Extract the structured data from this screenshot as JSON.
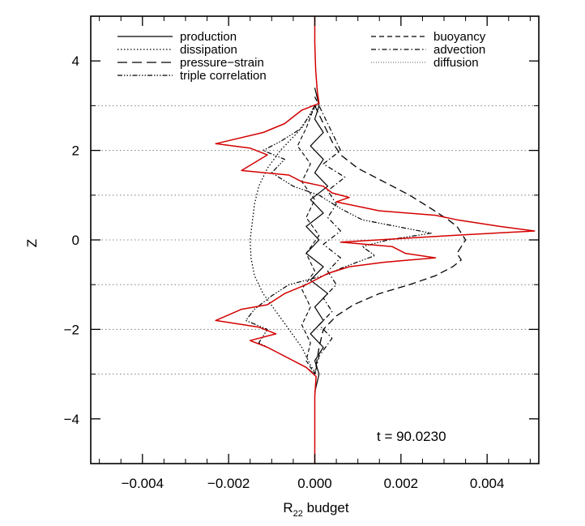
{
  "chart_data": {
    "type": "line",
    "xlabel": "R",
    "xlabel_subscript": "22",
    "xlabel_suffix": " budget",
    "ylabel": "Z",
    "xlim": [
      -0.0052,
      0.0052
    ],
    "ylim": [
      -5,
      5
    ],
    "xticks": [
      -0.004,
      -0.002,
      0.0,
      0.002,
      0.004
    ],
    "xtick_labels": [
      "−0.004",
      "−0.002",
      "0.000",
      "0.002",
      "0.004"
    ],
    "yticks": [
      -4,
      -2,
      0,
      2,
      4
    ],
    "ytick_labels": [
      "−4",
      "−2",
      "0",
      "2",
      "4"
    ],
    "reference_lines_z": [
      -3,
      -1,
      1,
      3,
      2,
      0,
      -2
    ],
    "annotation": "t  =  90.0230",
    "legend": {
      "left": [
        {
          "label": "production",
          "style": "solid"
        },
        {
          "label": "dissipation",
          "style": "dotted"
        },
        {
          "label": "pressure−strain",
          "style": "longdash"
        },
        {
          "label": "triple correlation",
          "style": "dashdotdotdot"
        }
      ],
      "right": [
        {
          "label": "buoyancy",
          "style": "dashed"
        },
        {
          "label": "advection",
          "style": "dashdot"
        },
        {
          "label": "diffusion",
          "style": "finedotted"
        }
      ]
    },
    "series": [
      {
        "name": "dissipation",
        "color": "#000000",
        "dash": "1.5,2.5",
        "width": 1.3,
        "points": [
          [
            3e-05,
            3.0
          ],
          [
            -0.0001,
            2.8
          ],
          [
            -0.0004,
            2.4
          ],
          [
            -0.0008,
            2.0
          ],
          [
            -0.0011,
            1.6
          ],
          [
            -0.0013,
            1.2
          ],
          [
            -0.0014,
            0.8
          ],
          [
            -0.00145,
            0.4
          ],
          [
            -0.0015,
            0.0
          ],
          [
            -0.00148,
            -0.4
          ],
          [
            -0.0014,
            -0.8
          ],
          [
            -0.0012,
            -1.2
          ],
          [
            -0.0009,
            -1.6
          ],
          [
            -0.0006,
            -2.0
          ],
          [
            -0.0003,
            -2.4
          ],
          [
            -0.0001,
            -2.8
          ],
          [
            3e-05,
            -3.0
          ]
        ]
      },
      {
        "name": "pressure−strain",
        "color": "#000000",
        "dash": "9,5",
        "width": 1.3,
        "points": [
          [
            0.0,
            3.0
          ],
          [
            0.0002,
            2.6
          ],
          [
            0.0004,
            2.2
          ],
          [
            0.0006,
            1.9
          ],
          [
            0.001,
            1.6
          ],
          [
            0.0016,
            1.3
          ],
          [
            0.0022,
            1.0
          ],
          [
            0.0027,
            0.7
          ],
          [
            0.0031,
            0.45
          ],
          [
            0.0033,
            0.3
          ],
          [
            0.0034,
            0.15
          ],
          [
            0.0035,
            0.0
          ],
          [
            0.0034,
            -0.15
          ],
          [
            0.0033,
            -0.3
          ],
          [
            0.0034,
            -0.45
          ],
          [
            0.0032,
            -0.6
          ],
          [
            0.0028,
            -0.8
          ],
          [
            0.0022,
            -1.0
          ],
          [
            0.0015,
            -1.2
          ],
          [
            0.0009,
            -1.45
          ],
          [
            0.0005,
            -1.7
          ],
          [
            0.0002,
            -2.0
          ],
          [
            0.0001,
            -2.4
          ],
          [
            0.0,
            -3.0
          ]
        ]
      },
      {
        "name": "triple correlation",
        "color": "#000000",
        "dash": "6,2,1.5,2,1.5,2,1.5,2",
        "width": 1.2,
        "points": [
          [
            0.0,
            3.0
          ],
          [
            -0.0003,
            2.5
          ],
          [
            -0.0008,
            2.2
          ],
          [
            -0.0012,
            2.0
          ],
          [
            -0.0007,
            1.8
          ],
          [
            -0.001,
            1.5
          ],
          [
            -0.0005,
            1.2
          ],
          [
            0.0001,
            1.0
          ],
          [
            0.0006,
            0.7
          ],
          [
            0.0011,
            0.45
          ],
          [
            0.0019,
            0.3
          ],
          [
            0.0027,
            0.15
          ],
          [
            0.0017,
            0.0
          ],
          [
            0.0011,
            -0.15
          ],
          [
            0.0014,
            -0.35
          ],
          [
            0.0007,
            -0.6
          ],
          [
            0.0002,
            -0.8
          ],
          [
            -0.0006,
            -1.0
          ],
          [
            -0.001,
            -1.25
          ],
          [
            -0.0014,
            -1.55
          ],
          [
            -0.0016,
            -1.8
          ],
          [
            -0.0011,
            -2.0
          ],
          [
            -0.0013,
            -2.3
          ],
          [
            -0.0007,
            -2.6
          ],
          [
            -0.0002,
            -2.85
          ],
          [
            0.0,
            -3.0
          ]
        ]
      },
      {
        "name": "advection",
        "color": "#000000",
        "dash": "6,3,1.5,3",
        "width": 1.2,
        "points": [
          [
            0.0,
            3.2
          ],
          [
            0.0002,
            2.8
          ],
          [
            0.0004,
            2.4
          ],
          [
            0.0006,
            2.0
          ],
          [
            0.0002,
            1.7
          ],
          [
            0.0007,
            1.4
          ],
          [
            0.0003,
            1.1
          ],
          [
            0.0005,
            0.8
          ],
          [
            0.0003,
            0.5
          ],
          [
            0.0006,
            0.2
          ],
          [
            0.0002,
            -0.1
          ],
          [
            0.0006,
            -0.4
          ],
          [
            0.0003,
            -0.7
          ],
          [
            0.0005,
            -1.0
          ],
          [
            0.0002,
            -1.3
          ],
          [
            0.0004,
            -1.6
          ],
          [
            0.0001,
            -1.9
          ],
          [
            0.0004,
            -2.2
          ],
          [
            0.0001,
            -2.6
          ],
          [
            0.0,
            -3.0
          ]
        ]
      },
      {
        "name": "buoyancy",
        "color": "#000000",
        "dash": "5,3",
        "width": 1.1,
        "points": [
          [
            0.0,
            3.0
          ],
          [
            -0.0002,
            2.5
          ],
          [
            -0.0004,
            2.1
          ],
          [
            -0.0001,
            1.7
          ],
          [
            -0.0003,
            1.3
          ],
          [
            0.0,
            0.9
          ],
          [
            -0.0002,
            0.5
          ],
          [
            0.0001,
            0.1
          ],
          [
            -0.0002,
            -0.3
          ],
          [
            0.0,
            -0.7
          ],
          [
            -0.0003,
            -1.1
          ],
          [
            -0.0001,
            -1.5
          ],
          [
            -0.0003,
            -1.9
          ],
          [
            -0.0001,
            -2.3
          ],
          [
            -0.0002,
            -2.7
          ],
          [
            0.0,
            -3.0
          ]
        ]
      },
      {
        "name": "production",
        "color": "#000000",
        "dash": "",
        "width": 1.2,
        "points": [
          [
            0.0,
            3.4
          ],
          [
            5e-05,
            3.2
          ],
          [
            0.0001,
            3.0
          ],
          [
            0.0,
            2.7
          ],
          [
            0.0002,
            2.4
          ],
          [
            -0.0001,
            2.1
          ],
          [
            0.0002,
            1.8
          ],
          [
            0.0,
            1.5
          ],
          [
            0.0003,
            1.2
          ],
          [
            -0.0001,
            0.9
          ],
          [
            0.0002,
            0.6
          ],
          [
            -0.0002,
            0.3
          ],
          [
            0.0001,
            0.0
          ],
          [
            -0.0002,
            -0.3
          ],
          [
            0.0002,
            -0.6
          ],
          [
            -0.0001,
            -0.9
          ],
          [
            0.0003,
            -1.2
          ],
          [
            0.0,
            -1.5
          ],
          [
            0.0002,
            -1.8
          ],
          [
            -0.0001,
            -2.1
          ],
          [
            0.0002,
            -2.4
          ],
          [
            0.0,
            -2.7
          ],
          [
            0.0001,
            -3.0
          ],
          [
            0.0,
            -3.4
          ]
        ]
      },
      {
        "name": "diffusion",
        "color": "#d40000",
        "dash": "",
        "width": 1.5,
        "points": [
          [
            0.0,
            5.0
          ],
          [
            0.0,
            4.4
          ],
          [
            2e-05,
            3.8
          ],
          [
            6e-05,
            3.3
          ],
          [
            0.0001,
            3.05
          ],
          [
            -0.0003,
            2.9
          ],
          [
            -0.0007,
            2.6
          ],
          [
            -0.0012,
            2.4
          ],
          [
            -0.0023,
            2.15
          ],
          [
            -0.0015,
            2.05
          ],
          [
            -0.0011,
            1.9
          ],
          [
            -0.0017,
            1.55
          ],
          [
            -0.0006,
            1.45
          ],
          [
            -0.0003,
            1.3
          ],
          [
            0.0002,
            1.2
          ],
          [
            0.0004,
            1.05
          ],
          [
            0.0008,
            0.95
          ],
          [
            0.0005,
            0.85
          ],
          [
            0.0015,
            0.65
          ],
          [
            0.0028,
            0.55
          ],
          [
            0.0033,
            0.45
          ],
          [
            0.0043,
            0.3
          ],
          [
            0.0051,
            0.2
          ],
          [
            0.0032,
            0.1
          ],
          [
            0.0006,
            -0.05
          ],
          [
            0.0018,
            -0.15
          ],
          [
            0.0021,
            -0.3
          ],
          [
            0.0028,
            -0.4
          ],
          [
            0.0016,
            -0.5
          ],
          [
            0.0008,
            -0.6
          ],
          [
            0.0003,
            -0.75
          ],
          [
            -0.0002,
            -1.0
          ],
          [
            -0.0007,
            -1.2
          ],
          [
            -0.0011,
            -1.45
          ],
          [
            -0.0017,
            -1.55
          ],
          [
            -0.0023,
            -1.8
          ],
          [
            -0.0013,
            -1.95
          ],
          [
            -0.0009,
            -2.1
          ],
          [
            -0.0015,
            -2.25
          ],
          [
            -0.0011,
            -2.4
          ],
          [
            -0.0007,
            -2.6
          ],
          [
            -0.0002,
            -2.85
          ],
          [
            3e-05,
            -3.05
          ],
          [
            0.0,
            -3.5
          ],
          [
            0.0,
            -4.2
          ],
          [
            0.0,
            -5.0
          ]
        ]
      }
    ]
  }
}
